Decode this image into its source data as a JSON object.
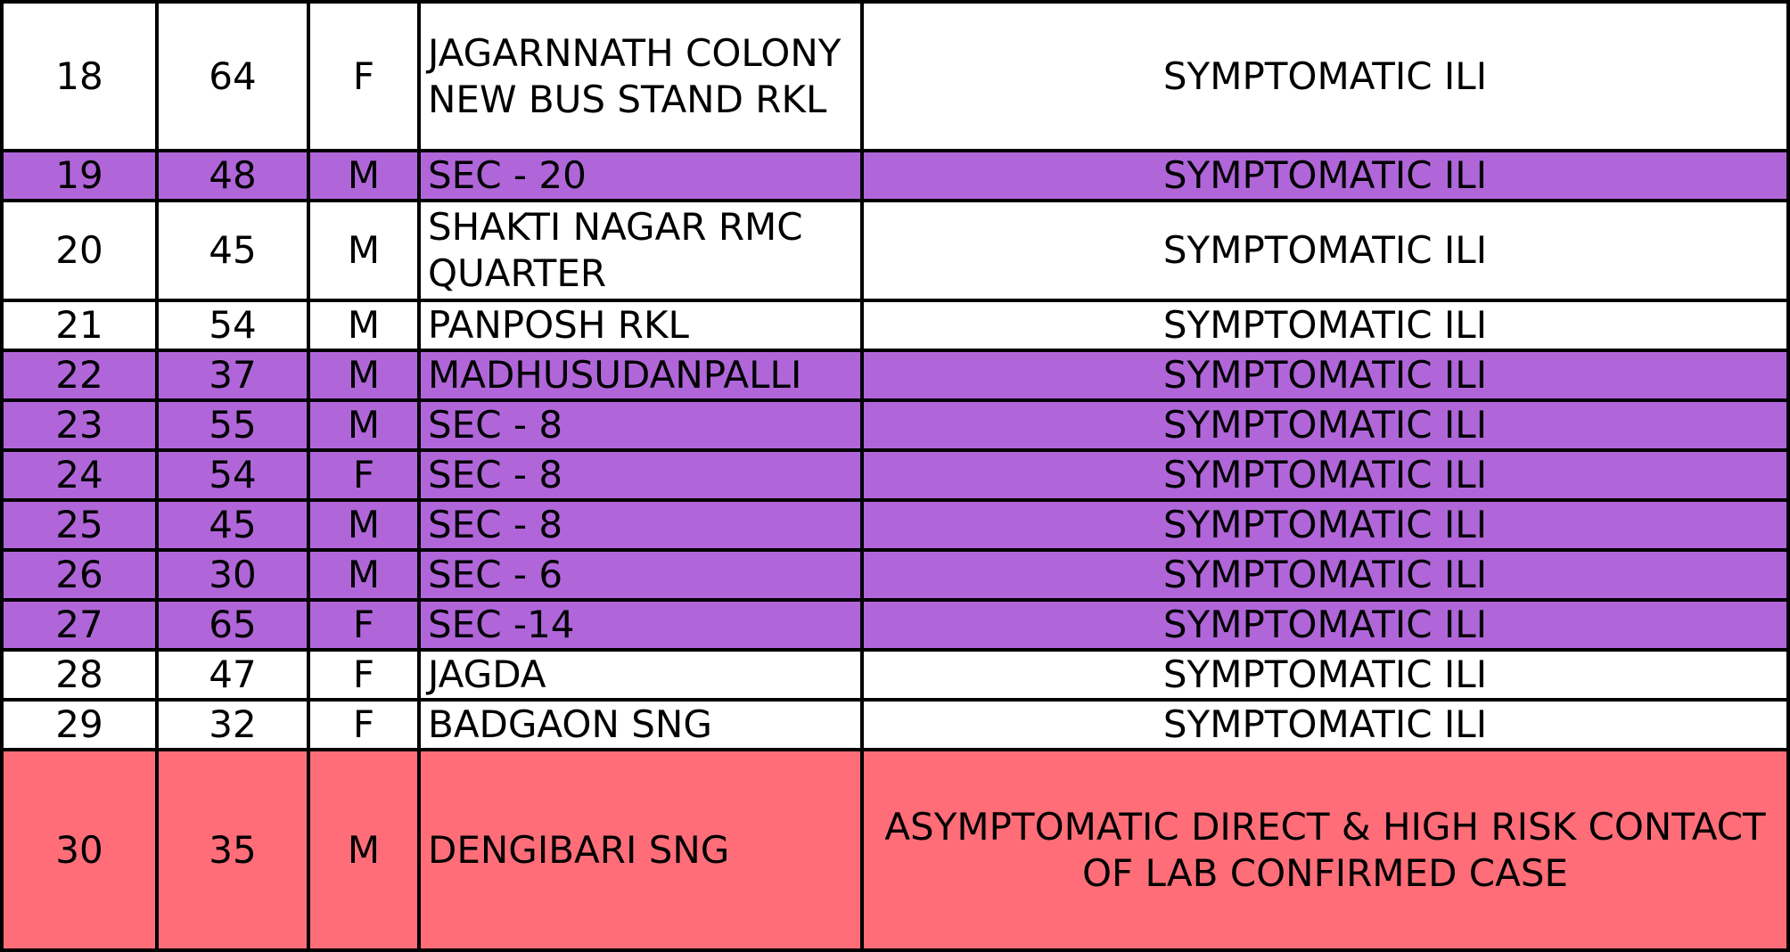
{
  "rows": [
    {
      "sl": "18",
      "age": "64",
      "sex": "F",
      "address": "JAGARNNATH COLONY NEW BUS STAND RKL",
      "status": "SYMPTOMATIC ILI",
      "highlight": "none"
    },
    {
      "sl": "19",
      "age": "48",
      "sex": "M",
      "address": "SEC - 20",
      "status": "SYMPTOMATIC ILI",
      "highlight": "purple"
    },
    {
      "sl": "20",
      "age": "45",
      "sex": "M",
      "address": " SHAKTI NAGAR RMC QUARTER",
      "status": "SYMPTOMATIC ILI",
      "highlight": "none"
    },
    {
      "sl": "21",
      "age": "54",
      "sex": "M",
      "address": "PANPOSH RKL",
      "status": "SYMPTOMATIC ILI",
      "highlight": "none"
    },
    {
      "sl": "22",
      "age": "37",
      "sex": "M",
      "address": "MADHUSUDANPALLI",
      "status": "SYMPTOMATIC ILI",
      "highlight": "purple"
    },
    {
      "sl": "23",
      "age": "55",
      "sex": "M",
      "address": " SEC - 8",
      "status": "SYMPTOMATIC ILI",
      "highlight": "purple"
    },
    {
      "sl": "24",
      "age": "54",
      "sex": "F",
      "address": " SEC - 8",
      "status": "SYMPTOMATIC ILI",
      "highlight": "purple"
    },
    {
      "sl": "25",
      "age": "45",
      "sex": "M",
      "address": "SEC - 8",
      "status": "SYMPTOMATIC ILI",
      "highlight": "purple"
    },
    {
      "sl": "26",
      "age": "30",
      "sex": "M",
      "address": "SEC - 6",
      "status": "SYMPTOMATIC ILI",
      "highlight": "purple"
    },
    {
      "sl": "27",
      "age": "65",
      "sex": "F",
      "address": " SEC -14",
      "status": "SYMPTOMATIC ILI",
      "highlight": "purple"
    },
    {
      "sl": "28",
      "age": "47",
      "sex": "F",
      "address": "JAGDA",
      "status": "SYMPTOMATIC ILI",
      "highlight": "none"
    },
    {
      "sl": "29",
      "age": "32",
      "sex": "F",
      "address": "BADGAON SNG",
      "status": "SYMPTOMATIC ILI",
      "highlight": "none"
    },
    {
      "sl": "30",
      "age": "35",
      "sex": "M",
      "address": "DENGIBARI SNG",
      "status": "ASYMPTOMATIC DIRECT & HIGH RISK CONTACT OF LAB CONFIRMED CASE",
      "highlight": "red"
    }
  ],
  "colors": {
    "purple_row": "#b066d9",
    "red_row": "#ff6e78",
    "border": "#000000"
  }
}
